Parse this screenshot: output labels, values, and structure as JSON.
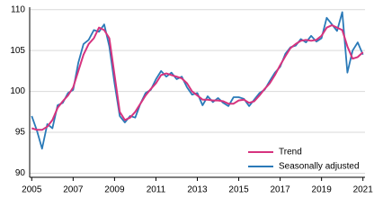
{
  "chart_data": {
    "type": "line",
    "x": [
      2005,
      2005.25,
      2005.5,
      2005.75,
      2006,
      2006.25,
      2006.5,
      2006.75,
      2007,
      2007.25,
      2007.5,
      2007.75,
      2008,
      2008.25,
      2008.5,
      2008.75,
      2009,
      2009.25,
      2009.5,
      2009.75,
      2010,
      2010.25,
      2010.5,
      2010.75,
      2011,
      2011.25,
      2011.5,
      2011.75,
      2012,
      2012.25,
      2012.5,
      2012.75,
      2013,
      2013.25,
      2013.5,
      2013.75,
      2014,
      2014.25,
      2014.5,
      2014.75,
      2015,
      2015.25,
      2015.5,
      2015.75,
      2016,
      2016.25,
      2016.5,
      2016.75,
      2017,
      2017.25,
      2017.5,
      2017.75,
      2018,
      2018.25,
      2018.5,
      2018.75,
      2019,
      2019.25,
      2019.5,
      2019.75,
      2020,
      2020.25,
      2020.5,
      2020.75,
      2021
    ],
    "series": [
      {
        "name": "Trend",
        "color": "#d6337e",
        "values": [
          95.5,
          95.3,
          95.3,
          95.7,
          96.5,
          98.0,
          98.8,
          99.5,
          100.5,
          102.5,
          104.5,
          105.8,
          106.5,
          107.8,
          107.5,
          106.5,
          102,
          97.5,
          96.5,
          96.8,
          97.5,
          98.5,
          99.5,
          100.3,
          101,
          102,
          102.2,
          102,
          101.8,
          101.6,
          101,
          100,
          99.5,
          99,
          99,
          98.9,
          98.9,
          98.8,
          98.5,
          98.5,
          98.9,
          99,
          98.6,
          98.8,
          99.5,
          100.3,
          101,
          102,
          103.2,
          104.3,
          105.3,
          105.8,
          106.2,
          106.3,
          106.2,
          106.3,
          106.8,
          107.8,
          108.1,
          107.8,
          107.5,
          105.5,
          104,
          104.2,
          104.8
        ]
      },
      {
        "name": "Seasonally adjusted",
        "color": "#2a7ab8",
        "values": [
          97,
          95.2,
          93,
          96,
          95.5,
          98.3,
          98.6,
          99.8,
          100.2,
          103.5,
          105.8,
          106.3,
          107.5,
          107.3,
          108.2,
          105.5,
          101,
          97,
          96.2,
          97,
          96.8,
          98.5,
          99.8,
          100.2,
          101.5,
          102.5,
          101.8,
          102.3,
          101.5,
          101.8,
          100.5,
          99.6,
          99.8,
          98.3,
          99.4,
          98.7,
          99.2,
          98.6,
          98.2,
          99.3,
          99.3,
          99.1,
          98.2,
          99.0,
          99.8,
          100.2,
          101.3,
          102.3,
          103.0,
          104.6,
          105.4,
          105.6,
          106.4,
          106.0,
          106.8,
          106.1,
          106.5,
          109.0,
          108.2,
          107.4,
          109.7,
          102.3,
          105.0,
          106.0,
          104.5
        ]
      }
    ],
    "xlim": [
      2004.9,
      2021.1
    ],
    "xticks": [
      2005,
      2007,
      2009,
      2011,
      2013,
      2015,
      2017,
      2019,
      2021
    ],
    "ylim": [
      89.5,
      110.3
    ],
    "yticks": [
      90,
      95,
      100,
      105,
      110
    ],
    "grid": true,
    "legend": "lower right"
  }
}
